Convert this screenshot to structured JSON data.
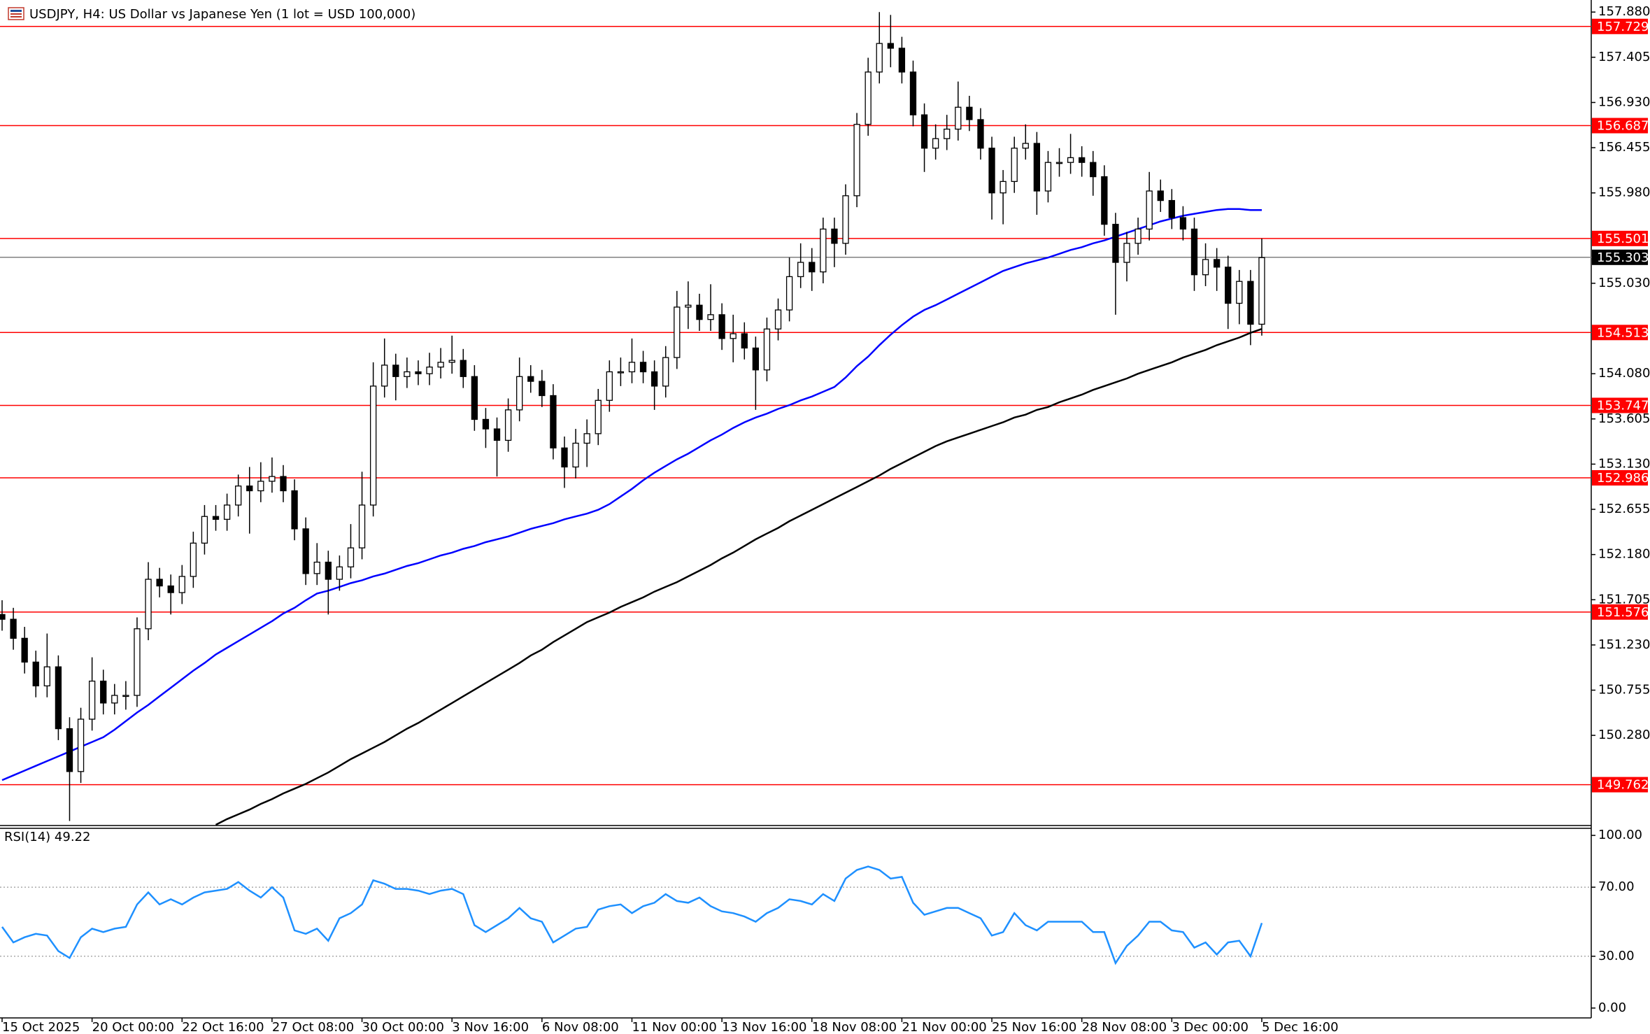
{
  "chart_data": [
    {
      "type": "candlestick",
      "title": "USDJPY, H4:  US Dollar vs Japanese Yen (1 lot = USD 100,000)",
      "categories": [
        "15 Oct 2025",
        null,
        null,
        null,
        null,
        null,
        null,
        null,
        "20 Oct 00:00",
        null,
        null,
        null,
        null,
        null,
        null,
        null,
        "22 Oct 16:00",
        null,
        null,
        null,
        null,
        null,
        null,
        null,
        "27 Oct 08:00",
        null,
        null,
        null,
        null,
        null,
        null,
        null,
        "30 Oct 00:00",
        null,
        null,
        null,
        null,
        null,
        null,
        null,
        "3 Nov 16:00",
        null,
        null,
        null,
        null,
        null,
        null,
        null,
        "6 Nov 08:00",
        null,
        null,
        null,
        null,
        null,
        null,
        null,
        "11 Nov 00:00",
        null,
        null,
        null,
        null,
        null,
        null,
        null,
        "13 Nov 16:00",
        null,
        null,
        null,
        null,
        null,
        null,
        null,
        "18 Nov 08:00",
        null,
        null,
        null,
        null,
        null,
        null,
        null,
        "21 Nov 00:00",
        null,
        null,
        null,
        null,
        null,
        null,
        null,
        "25 Nov 16:00",
        null,
        null,
        null,
        null,
        null,
        null,
        null,
        "28 Nov 08:00",
        null,
        null,
        null,
        null,
        null,
        null,
        null,
        "3 Dec 00:00",
        null,
        null,
        null,
        null,
        null,
        null,
        null,
        "5 Dec 16:00"
      ],
      "open": [
        151.55,
        151.5,
        151.3,
        151.05,
        150.8,
        151.0,
        150.35,
        149.9,
        150.45,
        150.85,
        150.62,
        150.7,
        150.7,
        151.4,
        151.92,
        151.85,
        151.78,
        151.95,
        152.3,
        152.58,
        152.55,
        152.7,
        152.9,
        152.85,
        152.95,
        153.0,
        152.85,
        152.45,
        151.98,
        152.1,
        151.92,
        152.05,
        152.25,
        152.7,
        153.95,
        154.17,
        154.05,
        154.1,
        154.08,
        154.15,
        154.2,
        154.22,
        154.05,
        153.6,
        153.5,
        153.38,
        153.7,
        154.05,
        154.0,
        153.85,
        153.3,
        153.1,
        153.35,
        153.45,
        153.8,
        154.1,
        154.1,
        154.2,
        154.1,
        153.95,
        154.25,
        154.78,
        154.8,
        154.65,
        154.7,
        154.45,
        154.5,
        154.35,
        154.12,
        154.55,
        154.75,
        155.1,
        155.25,
        155.15,
        155.6,
        155.45,
        155.95,
        156.7,
        157.25,
        157.55,
        157.5,
        157.25,
        156.8,
        156.45,
        156.55,
        156.65,
        156.88,
        156.75,
        156.45,
        155.98,
        156.1,
        156.45,
        156.5,
        156.0,
        156.3,
        156.3,
        156.35,
        156.3,
        156.15,
        155.65,
        155.25,
        155.45,
        155.6,
        156.0,
        155.9,
        155.72,
        155.6,
        155.12,
        155.28,
        155.2,
        154.82,
        155.05,
        154.6
      ],
      "high": [
        151.7,
        151.62,
        151.42,
        151.17,
        151.35,
        151.12,
        150.47,
        150.57,
        151.1,
        150.97,
        150.82,
        150.85,
        151.52,
        152.1,
        152.04,
        151.97,
        152.07,
        152.42,
        152.7,
        152.7,
        152.82,
        153.02,
        153.1,
        153.15,
        153.2,
        153.12,
        152.97,
        152.57,
        152.3,
        152.22,
        152.17,
        152.5,
        153.05,
        154.2,
        154.45,
        154.29,
        154.25,
        154.22,
        154.3,
        154.35,
        154.48,
        154.34,
        154.17,
        153.72,
        153.62,
        153.82,
        154.25,
        154.17,
        154.12,
        153.97,
        153.42,
        153.5,
        153.6,
        153.92,
        154.22,
        154.25,
        154.45,
        154.32,
        154.22,
        154.37,
        154.95,
        155.05,
        154.92,
        155.02,
        154.82,
        154.7,
        154.62,
        154.47,
        154.67,
        154.87,
        155.3,
        155.45,
        155.4,
        155.72,
        155.72,
        156.07,
        156.82,
        157.4,
        157.88,
        157.85,
        157.62,
        157.37,
        156.92,
        156.7,
        156.8,
        157.15,
        157.0,
        156.87,
        156.57,
        156.22,
        156.57,
        156.7,
        156.62,
        156.42,
        156.45,
        156.6,
        156.47,
        156.42,
        156.27,
        155.77,
        155.57,
        155.72,
        156.2,
        156.12,
        156.02,
        155.84,
        155.72,
        155.45,
        155.4,
        155.32,
        155.17,
        155.17,
        155.5
      ],
      "low": [
        151.38,
        151.18,
        150.93,
        150.68,
        150.68,
        150.23,
        149.38,
        149.78,
        150.33,
        150.5,
        150.5,
        150.55,
        150.58,
        151.28,
        151.73,
        151.55,
        151.66,
        151.83,
        152.18,
        152.43,
        152.43,
        152.58,
        152.4,
        152.73,
        152.83,
        152.73,
        152.33,
        151.86,
        151.86,
        151.55,
        151.8,
        151.93,
        152.13,
        152.58,
        153.83,
        153.8,
        153.93,
        153.96,
        153.96,
        154.03,
        154.08,
        153.93,
        153.48,
        153.3,
        153.0,
        153.26,
        153.58,
        153.88,
        153.73,
        153.18,
        152.88,
        152.98,
        153.1,
        153.33,
        153.68,
        153.95,
        153.98,
        153.98,
        153.7,
        153.83,
        154.13,
        154.55,
        154.53,
        154.53,
        154.33,
        154.2,
        154.23,
        153.7,
        154.0,
        154.43,
        154.63,
        154.98,
        154.95,
        155.03,
        155.2,
        155.33,
        155.83,
        156.58,
        157.13,
        157.3,
        157.13,
        156.68,
        156.2,
        156.33,
        156.43,
        156.53,
        156.63,
        156.33,
        155.7,
        155.65,
        155.98,
        156.33,
        155.75,
        155.88,
        156.15,
        156.18,
        156.15,
        155.95,
        155.53,
        154.7,
        155.05,
        155.33,
        155.48,
        155.78,
        155.6,
        155.48,
        154.95,
        155.0,
        154.95,
        154.55,
        154.6,
        154.38,
        154.48
      ],
      "close": [
        151.5,
        151.3,
        151.05,
        150.8,
        151.0,
        150.35,
        149.9,
        150.45,
        150.85,
        150.62,
        150.7,
        150.7,
        151.4,
        151.92,
        151.85,
        151.78,
        151.95,
        152.3,
        152.58,
        152.55,
        152.7,
        152.9,
        152.85,
        152.95,
        153.0,
        152.85,
        152.45,
        151.98,
        152.1,
        151.92,
        152.05,
        152.25,
        152.7,
        153.95,
        154.17,
        154.05,
        154.1,
        154.08,
        154.15,
        154.2,
        154.22,
        154.05,
        153.6,
        153.5,
        153.38,
        153.7,
        154.05,
        154.0,
        153.85,
        153.3,
        153.1,
        153.35,
        153.45,
        153.8,
        154.1,
        154.1,
        154.2,
        154.1,
        153.95,
        154.25,
        154.78,
        154.8,
        154.65,
        154.7,
        154.45,
        154.5,
        154.35,
        154.12,
        154.55,
        154.75,
        155.1,
        155.25,
        155.15,
        155.6,
        155.45,
        155.95,
        156.7,
        157.25,
        157.55,
        157.5,
        157.25,
        156.8,
        156.45,
        156.55,
        156.65,
        156.88,
        156.75,
        156.45,
        155.98,
        156.1,
        156.45,
        156.5,
        156.0,
        156.3,
        156.3,
        156.35,
        156.3,
        156.15,
        155.65,
        155.25,
        155.45,
        155.6,
        156.0,
        155.9,
        155.72,
        155.6,
        155.12,
        155.28,
        155.2,
        154.82,
        155.05,
        154.6,
        155.3
      ],
      "overlays": [
        {
          "color": "#0000ff",
          "values": [
            149.81,
            149.86,
            149.91,
            149.96,
            150.01,
            150.06,
            150.11,
            150.16,
            150.21,
            150.26,
            150.34,
            150.43,
            150.52,
            150.6,
            150.69,
            150.78,
            150.87,
            150.96,
            151.04,
            151.13,
            151.2,
            151.27,
            151.34,
            151.41,
            151.48,
            151.56,
            151.62,
            151.7,
            151.77,
            151.8,
            151.84,
            151.88,
            151.91,
            151.95,
            151.98,
            152.02,
            152.06,
            152.09,
            152.13,
            152.17,
            152.2,
            152.24,
            152.27,
            152.31,
            152.34,
            152.37,
            152.41,
            152.45,
            152.48,
            152.51,
            152.55,
            152.58,
            152.61,
            152.65,
            152.71,
            152.79,
            152.87,
            152.96,
            153.04,
            153.11,
            153.18,
            153.24,
            153.31,
            153.38,
            153.44,
            153.51,
            153.57,
            153.62,
            153.66,
            153.71,
            153.75,
            153.8,
            153.84,
            153.89,
            153.94,
            154.04,
            154.16,
            154.26,
            154.38,
            154.49,
            154.59,
            154.68,
            154.75,
            154.8,
            154.86,
            154.92,
            154.98,
            155.04,
            155.1,
            155.16,
            155.2,
            155.24,
            155.27,
            155.3,
            155.34,
            155.38,
            155.41,
            155.45,
            155.48,
            155.52,
            155.56,
            155.6,
            155.64,
            155.68,
            155.71,
            155.74,
            155.76,
            155.78,
            155.8,
            155.81,
            155.81,
            155.8,
            155.8
          ]
        },
        {
          "color": "#000000",
          "values": [
            null,
            null,
            null,
            null,
            null,
            null,
            null,
            null,
            null,
            null,
            null,
            null,
            null,
            null,
            null,
            null,
            null,
            null,
            null,
            149.34,
            149.4,
            149.45,
            149.5,
            149.56,
            149.61,
            149.67,
            149.72,
            149.77,
            149.83,
            149.89,
            149.96,
            150.03,
            150.09,
            150.15,
            150.21,
            150.28,
            150.35,
            150.41,
            150.48,
            150.55,
            150.62,
            150.69,
            150.76,
            150.83,
            150.9,
            150.97,
            151.04,
            151.12,
            151.18,
            151.26,
            151.33,
            151.4,
            151.47,
            151.52,
            151.57,
            151.63,
            151.68,
            151.73,
            151.79,
            151.84,
            151.89,
            151.95,
            152.01,
            152.07,
            152.14,
            152.2,
            152.27,
            152.34,
            152.4,
            152.46,
            152.53,
            152.59,
            152.65,
            152.71,
            152.77,
            152.83,
            152.89,
            152.95,
            153.01,
            153.08,
            153.14,
            153.2,
            153.26,
            153.32,
            153.37,
            153.41,
            153.45,
            153.49,
            153.53,
            153.57,
            153.62,
            153.65,
            153.7,
            153.73,
            153.78,
            153.82,
            153.86,
            153.91,
            153.95,
            153.99,
            154.03,
            154.08,
            154.12,
            154.16,
            154.2,
            154.25,
            154.29,
            154.33,
            154.38,
            154.42,
            154.46,
            154.51,
            154.55
          ]
        }
      ],
      "levels": [
        157.729,
        156.687,
        155.501,
        154.513,
        153.747,
        152.986,
        151.576,
        149.762
      ],
      "level_color": "#ff0000",
      "current_price": 155.303,
      "ylim": [
        149.34,
        157.97
      ],
      "yticks": [
        {
          "value": 157.88,
          "label": "157.880"
        },
        157.405,
        {
          "value": 156.93,
          "label": "156.930"
        },
        156.455,
        {
          "value": 155.98,
          "label": "155.980"
        },
        {
          "value": 155.03,
          "label": "155.030"
        },
        {
          "value": 154.08,
          "label": "154.080"
        },
        153.605,
        {
          "value": 153.13,
          "label": "153.130"
        },
        152.655,
        {
          "value": 152.18,
          "label": "152.180"
        },
        151.705,
        {
          "value": 151.23,
          "label": "151.230"
        },
        150.755,
        {
          "value": 150.28,
          "label": "150.280"
        }
      ]
    },
    {
      "type": "line",
      "title": "RSI(14) 49.22",
      "color": "#1e90ff",
      "values": [
        47,
        38,
        41,
        43,
        42,
        33,
        29,
        41,
        46,
        44,
        46,
        47,
        60,
        67,
        60,
        63,
        60,
        64,
        67,
        68,
        69,
        73,
        68,
        64,
        70,
        64,
        45,
        43,
        46,
        39,
        52,
        55,
        60,
        74,
        72,
        69,
        69,
        68,
        66,
        68,
        69,
        66,
        48,
        44,
        48,
        52,
        58,
        52,
        50,
        38,
        42,
        46,
        47,
        57,
        59,
        60,
        55,
        59,
        61,
        66,
        62,
        61,
        64,
        59,
        56,
        55,
        53,
        50,
        55,
        58,
        63,
        62,
        60,
        66,
        62,
        75,
        80,
        82,
        80,
        75,
        76,
        61,
        54,
        56,
        58,
        58,
        55,
        52,
        42,
        44,
        55,
        48,
        45,
        50,
        50,
        50,
        50,
        44,
        44,
        26,
        36,
        42,
        50,
        50,
        45,
        44,
        35,
        38,
        31,
        38,
        39,
        30,
        49.22
      ],
      "levels": [
        70,
        30
      ],
      "ylim": [
        -4.9,
        103.7
      ],
      "yticks": [
        {
          "value": 100,
          "label": "100.00"
        },
        {
          "value": 70,
          "label": "70.00"
        },
        {
          "value": 30,
          "label": "30.00"
        },
        {
          "value": 0,
          "label": "0.00"
        }
      ]
    }
  ]
}
